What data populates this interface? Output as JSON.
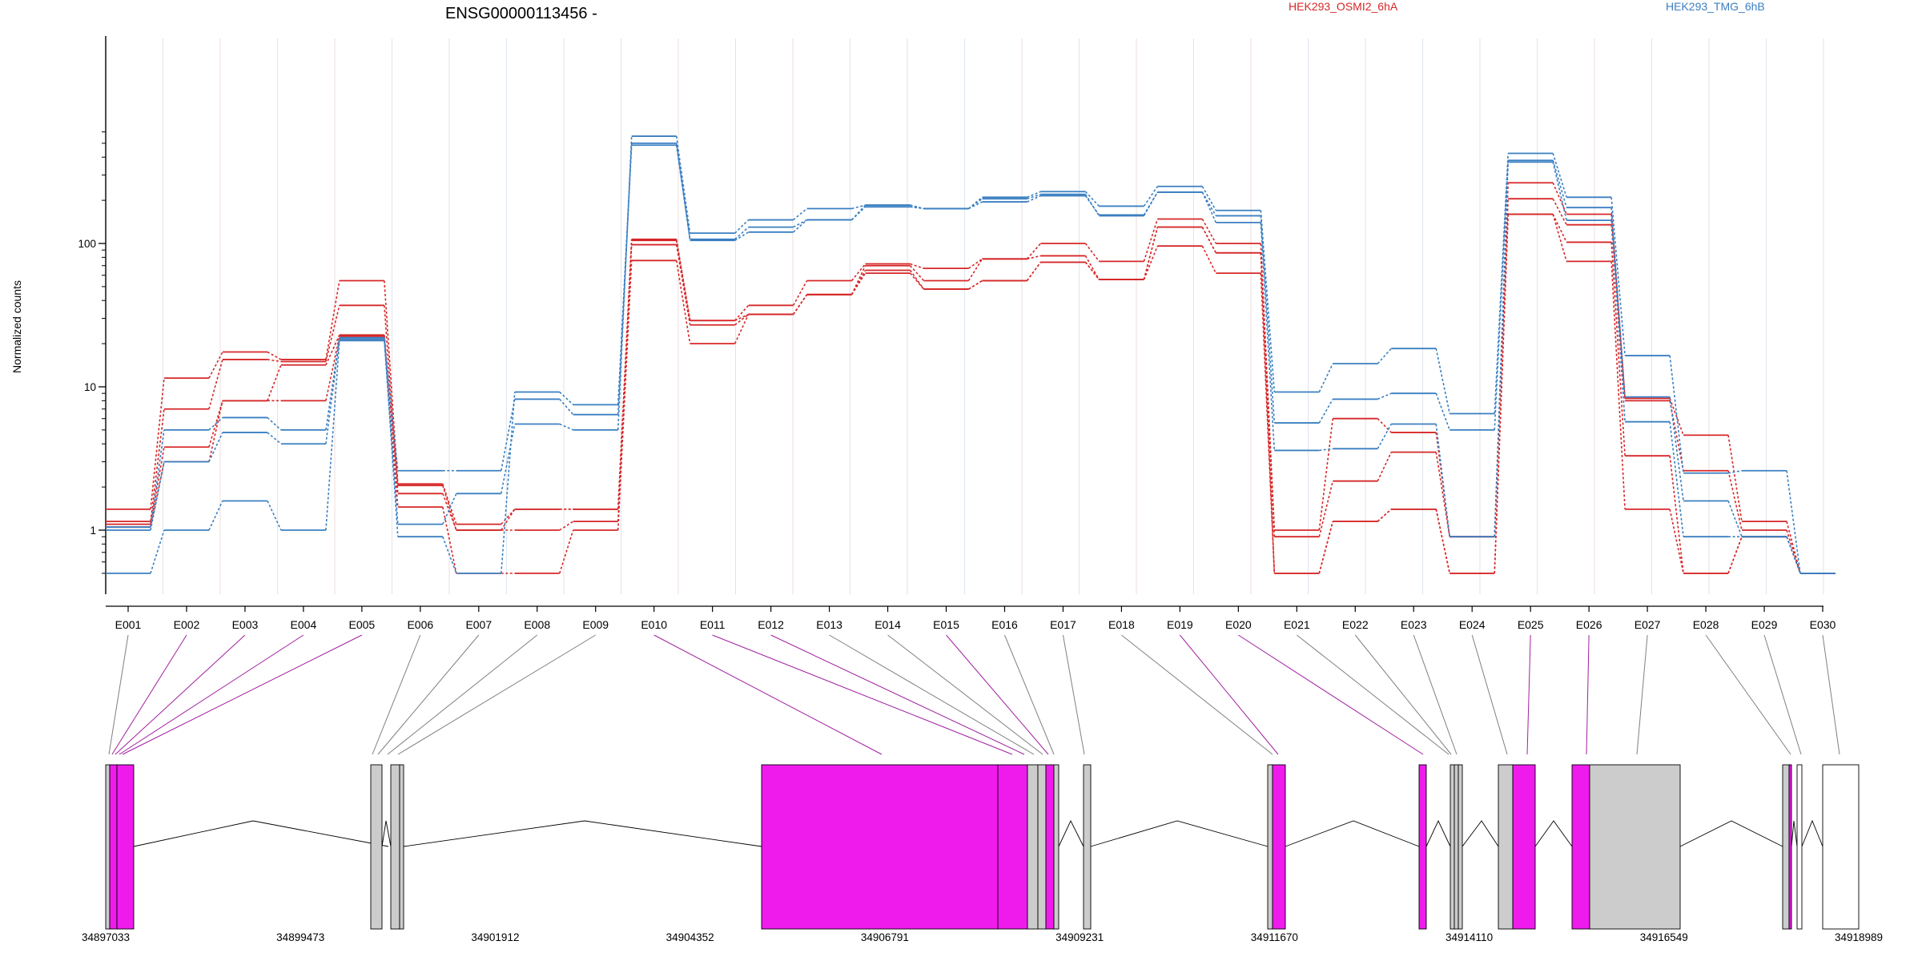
{
  "chart_data": {
    "type": "line",
    "title": "ENSG00000113456 -",
    "ylabel": "Normalized counts",
    "yscale": "log",
    "yticks": [
      "1",
      "10",
      "100"
    ],
    "ylim": [
      0.5,
      650
    ],
    "grid": true,
    "legend": {
      "placement": "top",
      "entries": [
        {
          "name": "HEK293_OSMI2_6hA",
          "color": "#d62728"
        },
        {
          "name": "HEK293_TMG_6hB",
          "color": "#3a7fc1"
        }
      ]
    },
    "categories": [
      "E001",
      "E002",
      "E003",
      "E004",
      "E005",
      "E006",
      "E007",
      "E008",
      "E009",
      "E010",
      "E011",
      "E012",
      "E013",
      "E014",
      "E015",
      "E016",
      "E017",
      "E018",
      "E019",
      "E020",
      "E021",
      "E022",
      "E023",
      "E024",
      "E025",
      "E026",
      "E027",
      "E028",
      "E029",
      "E030"
    ],
    "series": [
      {
        "group": "red",
        "values": [
          1.4,
          11.5,
          17.5,
          15.5,
          55,
          2.1,
          1.1,
          1.4,
          1.4,
          105,
          29,
          37,
          55,
          72,
          67,
          78,
          100,
          75,
          148,
          100,
          1.0,
          6.0,
          4.8,
          0.9,
          265,
          160,
          8.3,
          4.6,
          1.15,
          0.5
        ]
      },
      {
        "group": "red",
        "values": [
          1.15,
          7.0,
          15.5,
          15.0,
          37,
          1.8,
          1.0,
          1.0,
          1.15,
          98,
          27,
          32,
          44,
          70,
          55,
          78,
          82,
          56,
          130,
          86,
          0.9,
          2.2,
          3.5,
          0.9,
          205,
          135,
          8.0,
          2.6,
          1.0,
          0.5
        ]
      },
      {
        "group": "red",
        "values": [
          1.1,
          3.8,
          8.0,
          8.0,
          22.5,
          1.45,
          0.5,
          0.5,
          1.0,
          76,
          20,
          32,
          44,
          62,
          48,
          55,
          74,
          56,
          96,
          62,
          0.5,
          1.15,
          1.4,
          0.5,
          160,
          102,
          3.3,
          0.5,
          0.9,
          0.5
        ]
      },
      {
        "group": "red",
        "values": [
          1.05,
          3.0,
          8.0,
          14.2,
          23,
          2.05,
          1.0,
          1.4,
          1.4,
          107,
          29,
          32,
          44,
          65,
          48,
          55,
          74,
          56,
          130,
          86,
          0.5,
          1.15,
          1.4,
          0.5,
          160,
          75,
          1.4,
          0.5,
          0.9,
          0.5
        ]
      },
      {
        "group": "blue",
        "values": [
          0.5,
          1.0,
          1.6,
          1.0,
          21,
          1.1,
          1.8,
          5.5,
          5.0,
          560,
          118,
          146,
          175,
          185,
          175,
          210,
          230,
          182,
          250,
          170,
          9.2,
          14.5,
          18.5,
          6.5,
          425,
          210,
          16.5,
          2.5,
          2.6,
          0.5
        ]
      },
      {
        "group": "blue",
        "values": [
          1.05,
          5.0,
          6.1,
          5.0,
          22,
          0.9,
          0.5,
          9.2,
          7.5,
          500,
          107,
          130,
          146,
          185,
          175,
          195,
          215,
          158,
          228,
          156,
          5.6,
          8.2,
          9.0,
          5.0,
          380,
          178,
          8.5,
          1.6,
          0.9,
          0.5
        ]
      },
      {
        "group": "blue",
        "values": [
          1.0,
          3.0,
          4.8,
          4.0,
          21.5,
          2.6,
          2.6,
          8.2,
          6.4,
          485,
          105,
          120,
          146,
          180,
          175,
          205,
          220,
          156,
          228,
          140,
          3.6,
          3.7,
          5.5,
          0.9,
          370,
          145,
          5.7,
          0.9,
          0.9,
          0.5
        ]
      }
    ],
    "gene_model": {
      "coordinates": [
        "34897033",
        "34899473",
        "34901912",
        "34904352",
        "34906791",
        "34909231",
        "34911670",
        "34914110",
        "34916549",
        "34918989"
      ]
    }
  }
}
